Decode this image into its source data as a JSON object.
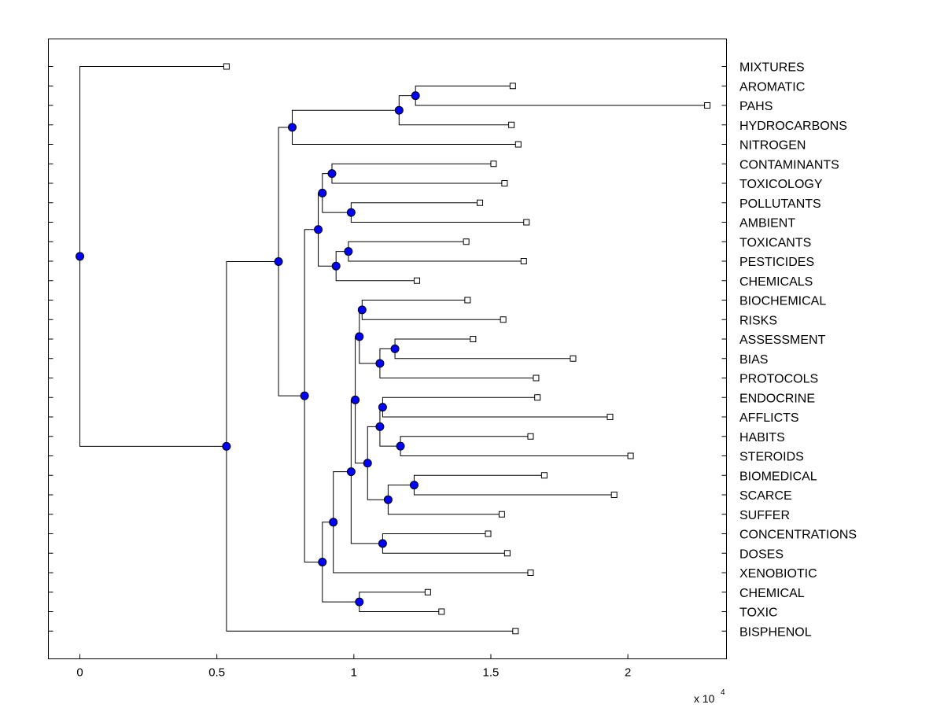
{
  "chart_data": {
    "type": "dendrogram",
    "x_ticks": [
      0,
      0.5,
      1,
      1.5,
      2
    ],
    "x_tick_labels": [
      "0",
      "0.5",
      "1",
      "1.5",
      "2"
    ],
    "xlim": [
      -0.115,
      2.36
    ],
    "x_scale_text": "x 10",
    "x_scale_exponent": "4",
    "colors": {
      "node": "#0000ff",
      "line": "#000000",
      "leaf": "#ffffff"
    },
    "leaves": [
      {
        "label": "MIXTURES",
        "x": 0.535
      },
      {
        "label": "AROMATIC",
        "x": 1.58
      },
      {
        "label": "PAHS",
        "x": 2.29
      },
      {
        "label": "HYDROCARBONS",
        "x": 1.575
      },
      {
        "label": "NITROGEN",
        "x": 1.6
      },
      {
        "label": "CONTAMINANTS",
        "x": 1.51
      },
      {
        "label": "TOXICOLOGY",
        "x": 1.55
      },
      {
        "label": "POLLUTANTS",
        "x": 1.46
      },
      {
        "label": "AMBIENT",
        "x": 1.63
      },
      {
        "label": "TOXICANTS",
        "x": 1.41
      },
      {
        "label": "PESTICIDES",
        "x": 1.62
      },
      {
        "label": "CHEMICALS",
        "x": 1.23
      },
      {
        "label": "BIOCHEMICAL",
        "x": 1.415
      },
      {
        "label": "RISKS",
        "x": 1.545
      },
      {
        "label": "ASSESSMENT",
        "x": 1.435
      },
      {
        "label": "BIAS",
        "x": 1.8
      },
      {
        "label": "PROTOCOLS",
        "x": 1.665
      },
      {
        "label": "ENDOCRINE",
        "x": 1.67
      },
      {
        "label": "AFFLICTS",
        "x": 1.935
      },
      {
        "label": "HABITS",
        "x": 1.645
      },
      {
        "label": "STEROIDS",
        "x": 2.01
      },
      {
        "label": "BIOMEDICAL",
        "x": 1.695
      },
      {
        "label": "SCARCE",
        "x": 1.95
      },
      {
        "label": "SUFFER",
        "x": 1.54
      },
      {
        "label": "CONCENTRATIONS",
        "x": 1.49
      },
      {
        "label": "DOSES",
        "x": 1.56
      },
      {
        "label": "XENOBIOTIC",
        "x": 1.645
      },
      {
        "label": "CHEMICAL",
        "x": 1.27
      },
      {
        "label": "TOXIC",
        "x": 1.32
      },
      {
        "label": "BISPHENOL",
        "x": 1.59
      }
    ],
    "merges": [
      {
        "id": "n1",
        "x": 1.225,
        "children": [
          "L1",
          "L2"
        ]
      },
      {
        "id": "n2",
        "x": 1.165,
        "children": [
          "n1",
          "L3"
        ]
      },
      {
        "id": "n3",
        "x": 0.775,
        "children": [
          "n2",
          "L4"
        ]
      },
      {
        "id": "n4",
        "x": 0.92,
        "children": [
          "L5",
          "L6"
        ]
      },
      {
        "id": "n5",
        "x": 0.99,
        "children": [
          "L7",
          "L8"
        ]
      },
      {
        "id": "n6",
        "x": 0.885,
        "children": [
          "n4",
          "n5"
        ]
      },
      {
        "id": "n7",
        "x": 0.98,
        "children": [
          "L9",
          "L10"
        ]
      },
      {
        "id": "n8",
        "x": 0.935,
        "children": [
          "n7",
          "L11"
        ]
      },
      {
        "id": "n9",
        "x": 0.87,
        "children": [
          "n6",
          "n8"
        ]
      },
      {
        "id": "n10",
        "x": 1.03,
        "children": [
          "L12",
          "L13"
        ]
      },
      {
        "id": "n11",
        "x": 1.15,
        "children": [
          "L14",
          "L15"
        ]
      },
      {
        "id": "n12",
        "x": 1.095,
        "children": [
          "n11",
          "L16"
        ]
      },
      {
        "id": "n13",
        "x": 1.02,
        "children": [
          "n10",
          "n12"
        ]
      },
      {
        "id": "n14",
        "x": 1.105,
        "children": [
          "L17",
          "L18"
        ]
      },
      {
        "id": "n15",
        "x": 1.17,
        "children": [
          "L19",
          "L20"
        ]
      },
      {
        "id": "n16",
        "x": 1.095,
        "children": [
          "n14",
          "n15"
        ]
      },
      {
        "id": "n17",
        "x": 1.22,
        "children": [
          "L21",
          "L22"
        ]
      },
      {
        "id": "n18",
        "x": 1.125,
        "children": [
          "n17",
          "L23"
        ]
      },
      {
        "id": "n19",
        "x": 1.05,
        "children": [
          "n16",
          "n18"
        ]
      },
      {
        "id": "n20",
        "x": 1.005,
        "children": [
          "n13",
          "n19"
        ]
      },
      {
        "id": "n21",
        "x": 1.105,
        "children": [
          "L24",
          "L25"
        ]
      },
      {
        "id": "n22",
        "x": 0.99,
        "children": [
          "n20",
          "n21"
        ]
      },
      {
        "id": "n23",
        "x": 0.925,
        "children": [
          "n22",
          "L26"
        ]
      },
      {
        "id": "n24",
        "x": 1.02,
        "children": [
          "L27",
          "L28"
        ]
      },
      {
        "id": "n25",
        "x": 0.885,
        "children": [
          "n23",
          "n24"
        ]
      },
      {
        "id": "n26",
        "x": 0.82,
        "children": [
          "n9",
          "n25"
        ]
      },
      {
        "id": "n27",
        "x": 0.725,
        "children": [
          "n3",
          "n26"
        ]
      },
      {
        "id": "n28",
        "x": 0.535,
        "children": [
          "n27",
          "L29"
        ]
      },
      {
        "id": "n29",
        "x": 0,
        "children": [
          "L0",
          "n28"
        ]
      }
    ]
  }
}
